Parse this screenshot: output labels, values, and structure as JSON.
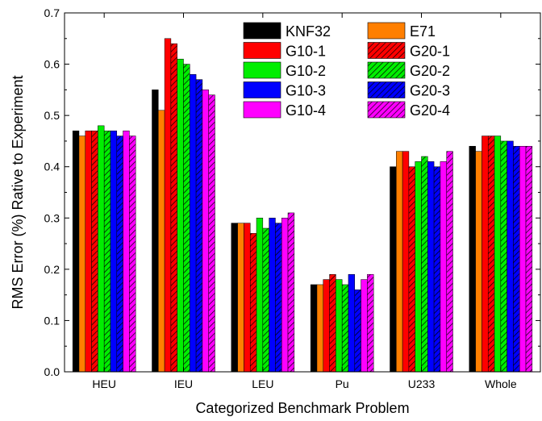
{
  "chart_data": {
    "type": "bar",
    "title": "",
    "xlabel": "Categorized Benchmark Problem",
    "ylabel": "RMS Error (%) Rative to Experiment",
    "ylim": [
      0,
      0.7
    ],
    "yticks": [
      "0.0",
      "0.1",
      "0.2",
      "0.3",
      "0.4",
      "0.5",
      "0.6",
      "0.7"
    ],
    "grid": false,
    "legend_position": "top-center",
    "categories": [
      "HEU",
      "IEU",
      "LEU",
      "Pu",
      "U233",
      "Whole"
    ],
    "series": [
      {
        "name": "KNF32",
        "color": "#000000",
        "hatch": false,
        "values": [
          0.47,
          0.55,
          0.29,
          0.17,
          0.4,
          0.44
        ]
      },
      {
        "name": "E71",
        "color": "#ff7f00",
        "hatch": false,
        "values": [
          0.46,
          0.51,
          0.29,
          0.17,
          0.43,
          0.43
        ]
      },
      {
        "name": "G10-1",
        "color": "#ff0000",
        "hatch": false,
        "values": [
          0.47,
          0.65,
          0.29,
          0.18,
          0.43,
          0.46
        ]
      },
      {
        "name": "G20-1",
        "color": "#ff0000",
        "hatch": true,
        "values": [
          0.47,
          0.64,
          0.27,
          0.19,
          0.4,
          0.46
        ]
      },
      {
        "name": "G10-2",
        "color": "#00ee00",
        "hatch": false,
        "values": [
          0.48,
          0.61,
          0.3,
          0.18,
          0.41,
          0.46
        ]
      },
      {
        "name": "G20-2",
        "color": "#00ee00",
        "hatch": true,
        "values": [
          0.47,
          0.6,
          0.28,
          0.17,
          0.42,
          0.45
        ]
      },
      {
        "name": "G10-3",
        "color": "#0000ff",
        "hatch": false,
        "values": [
          0.47,
          0.58,
          0.3,
          0.19,
          0.41,
          0.45
        ]
      },
      {
        "name": "G20-3",
        "color": "#0000ff",
        "hatch": true,
        "values": [
          0.46,
          0.57,
          0.29,
          0.16,
          0.4,
          0.44
        ]
      },
      {
        "name": "G10-4",
        "color": "#ff00ff",
        "hatch": false,
        "values": [
          0.47,
          0.55,
          0.3,
          0.18,
          0.41,
          0.44
        ]
      },
      {
        "name": "G20-4",
        "color": "#ff00ff",
        "hatch": true,
        "values": [
          0.46,
          0.54,
          0.31,
          0.19,
          0.43,
          0.44
        ]
      }
    ]
  }
}
